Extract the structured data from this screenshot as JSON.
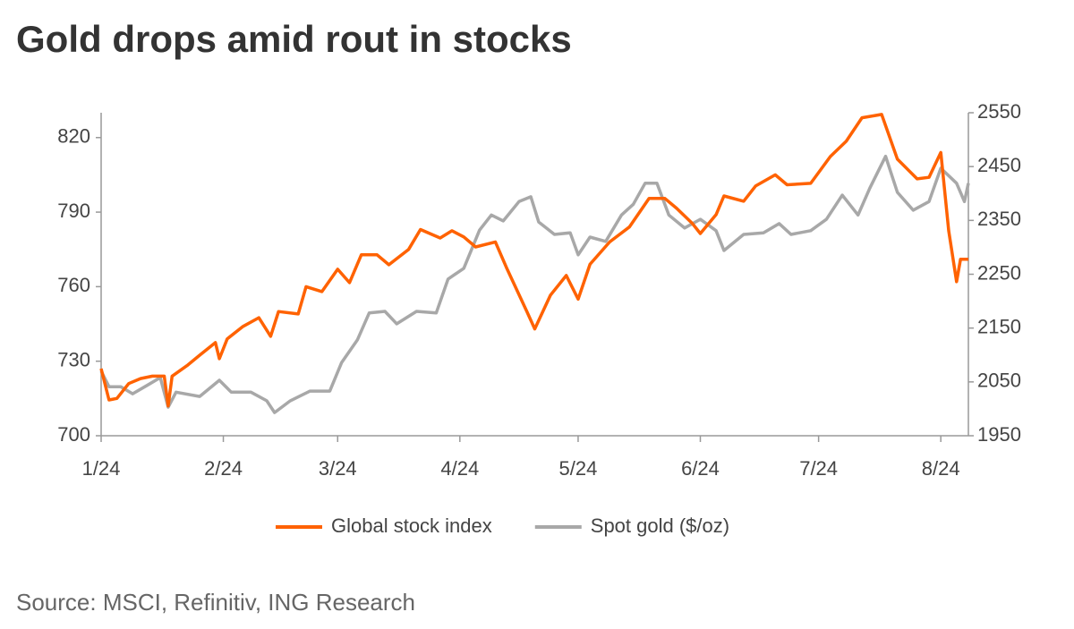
{
  "chart_data": {
    "type": "line",
    "title": "Gold drops amid rout in stocks",
    "source": "Source: MSCI, Refinitiv, ING Research",
    "xlim": [
      0,
      220
    ],
    "xticks": [
      {
        "value": 0,
        "label": "1/24"
      },
      {
        "value": 31,
        "label": "2/24"
      },
      {
        "value": 60,
        "label": "3/24"
      },
      {
        "value": 91,
        "label": "4/24"
      },
      {
        "value": 121,
        "label": "5/24"
      },
      {
        "value": 152,
        "label": "6/24"
      },
      {
        "value": 182,
        "label": "7/24"
      },
      {
        "value": 213,
        "label": "8/24"
      }
    ],
    "ylim": [
      700,
      830
    ],
    "yticks": [
      700,
      730,
      760,
      790,
      820
    ],
    "y2lim": [
      1950,
      2550
    ],
    "y2ticks": [
      1950,
      2050,
      2150,
      2250,
      2350,
      2450,
      2550
    ],
    "legend": "bottom",
    "series": [
      {
        "name": "Global stock index",
        "color": "#ff6200",
        "axis": "y",
        "x": [
          0,
          2,
          4,
          7,
          10,
          13,
          16,
          17,
          18,
          22,
          25,
          29,
          30,
          32,
          36,
          40,
          43,
          45,
          50,
          52,
          56,
          60,
          63,
          66,
          70,
          73,
          78,
          81,
          86,
          89,
          92,
          95,
          100,
          103,
          108,
          110,
          114,
          118,
          121,
          124,
          129,
          134,
          139,
          143,
          146,
          150,
          152,
          156,
          158,
          163,
          166,
          171,
          174,
          180,
          185,
          189,
          193,
          198,
          202,
          207,
          210,
          213,
          215,
          217,
          218,
          220
        ],
        "values": [
          727,
          714.4,
          715,
          721,
          723,
          724,
          724,
          712,
          724,
          728.5,
          732.4,
          737.5,
          731,
          739,
          744,
          747.5,
          740,
          750,
          749,
          760,
          758,
          767,
          761.6,
          772.8,
          772.8,
          768.8,
          775,
          783,
          779.6,
          782.5,
          780,
          776,
          778,
          767,
          750,
          743,
          756.6,
          764.5,
          755,
          769,
          778,
          784,
          795.5,
          795.5,
          791.5,
          785.4,
          781.4,
          789,
          796.5,
          794.4,
          800.5,
          805,
          801,
          801.6,
          812.4,
          818.5,
          828,
          829.3,
          811.3,
          803.4,
          804,
          814,
          782.5,
          762,
          771,
          771
        ]
      },
      {
        "name": "Spot gold ($/oz)",
        "color": "#a8a8a8",
        "axis": "y2",
        "x": [
          0,
          2,
          5,
          8,
          12,
          15,
          17,
          19,
          25,
          30,
          33,
          38,
          42,
          44,
          48,
          53,
          58,
          61,
          65,
          68,
          72,
          75,
          80,
          85,
          88,
          92,
          96,
          99,
          102,
          106,
          109,
          111,
          115,
          119,
          121,
          124,
          128,
          132,
          135,
          138,
          141,
          144,
          148,
          152,
          156,
          158,
          163,
          168,
          172,
          175,
          180,
          184,
          188,
          192,
          195,
          199,
          202,
          206,
          210,
          213,
          217,
          219,
          220
        ],
        "values": [
          2070,
          2041,
          2041,
          2028,
          2045,
          2058,
          2003,
          2031,
          2023,
          2053,
          2031,
          2031,
          2015,
          1993,
          2015,
          2033,
          2033,
          2086,
          2128,
          2178,
          2181,
          2158,
          2181,
          2178,
          2241,
          2261,
          2332,
          2360,
          2349,
          2385,
          2394,
          2347,
          2324,
          2327,
          2286,
          2319,
          2311,
          2360,
          2380,
          2419,
          2419,
          2360,
          2336,
          2352,
          2331,
          2294,
          2324,
          2327,
          2344,
          2324,
          2331,
          2352,
          2397,
          2360,
          2410,
          2469,
          2402,
          2369,
          2385,
          2447,
          2419,
          2385,
          2419
        ]
      }
    ]
  }
}
